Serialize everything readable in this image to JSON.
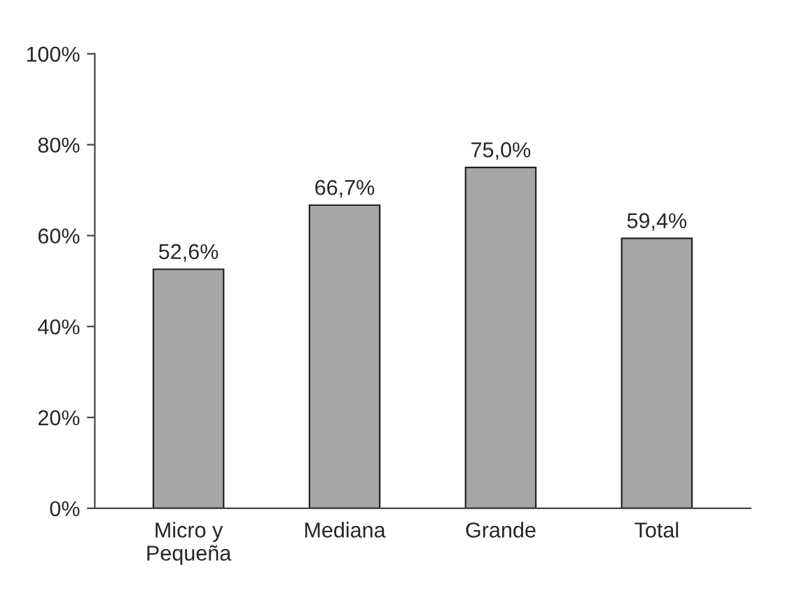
{
  "chart_data": {
    "type": "bar",
    "categories": [
      "Micro y\nPequeña",
      "Mediana",
      "Grande",
      "Total"
    ],
    "values": [
      52.6,
      66.7,
      75.0,
      59.4
    ],
    "value_labels": [
      "52,6%",
      "66,7%",
      "75,0%",
      "59,4%"
    ],
    "color": "#a6a6a6",
    "ylim": [
      0,
      100
    ],
    "yticks": [
      {
        "value": 0,
        "label": "0%"
      },
      {
        "value": 20,
        "label": "20%"
      },
      {
        "value": 40,
        "label": "40%"
      },
      {
        "value": 60,
        "label": "60%"
      },
      {
        "value": 80,
        "label": "80%"
      },
      {
        "value": 100,
        "label": "100%"
      }
    ],
    "grid": false
  }
}
